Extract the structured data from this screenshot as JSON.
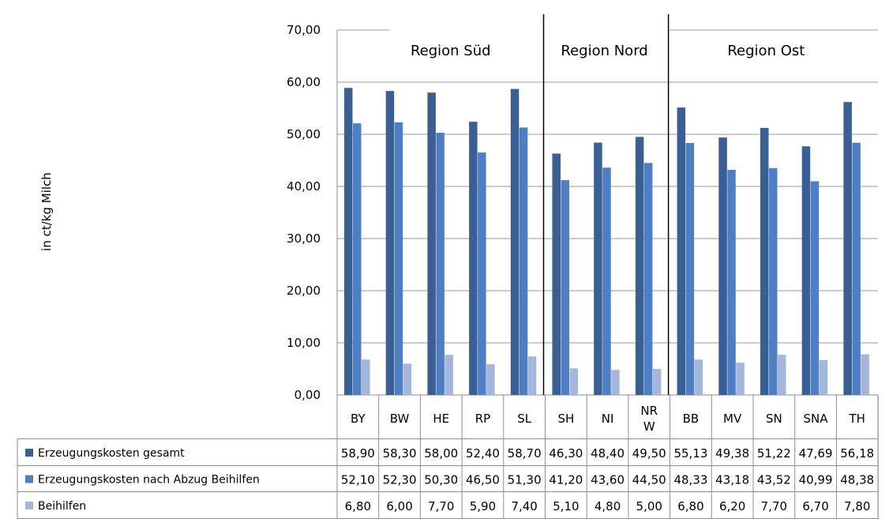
{
  "chart_data": {
    "type": "bar",
    "ylabel": "in ct/kg Milch",
    "ylim": [
      0,
      70
    ],
    "y_ticks": [
      "0,00",
      "10,00",
      "20,00",
      "30,00",
      "40,00",
      "50,00",
      "60,00",
      "70,00"
    ],
    "grid": true,
    "legend_placement": "data-table-bottom",
    "categories": [
      {
        "label": "BY",
        "lines": [
          "BY"
        ]
      },
      {
        "label": "BW",
        "lines": [
          "BW"
        ]
      },
      {
        "label": "HE",
        "lines": [
          "HE"
        ]
      },
      {
        "label": "RP",
        "lines": [
          "RP"
        ]
      },
      {
        "label": "SL",
        "lines": [
          "SL"
        ]
      },
      {
        "label": "SH",
        "lines": [
          "SH"
        ]
      },
      {
        "label": "NI",
        "lines": [
          "NI"
        ]
      },
      {
        "label": "NRW",
        "lines": [
          "NR",
          "W"
        ]
      },
      {
        "label": "BB",
        "lines": [
          "BB"
        ]
      },
      {
        "label": "MV",
        "lines": [
          "MV"
        ]
      },
      {
        "label": "SN",
        "lines": [
          "SN"
        ]
      },
      {
        "label": "SNA",
        "lines": [
          "SNA"
        ]
      },
      {
        "label": "TH",
        "lines": [
          "TH"
        ]
      }
    ],
    "regions": [
      {
        "name": "Region Süd",
        "start": 0,
        "end": 4
      },
      {
        "name": "Region Nord",
        "start": 5,
        "end": 7
      },
      {
        "name": "Region Ost",
        "start": 8,
        "end": 12
      }
    ],
    "series": [
      {
        "name": "Erzeugungskosten gesamt",
        "color": "#3A5F94",
        "values": [
          58.9,
          58.3,
          58.0,
          52.4,
          58.7,
          46.3,
          48.4,
          49.5,
          55.13,
          49.38,
          51.22,
          47.69,
          56.18
        ],
        "labels": [
          "58,90",
          "58,30",
          "58,00",
          "52,40",
          "58,70",
          "46,30",
          "48,40",
          "49,50",
          "55,13",
          "49,38",
          "51,22",
          "47,69",
          "56,18"
        ]
      },
      {
        "name": "Erzeugungskosten nach Abzug Beihilfen",
        "color": "#4E7FC2",
        "values": [
          52.1,
          52.3,
          50.3,
          46.5,
          51.3,
          41.2,
          43.6,
          44.5,
          48.33,
          43.18,
          43.52,
          40.99,
          48.38
        ],
        "labels": [
          "52,10",
          "52,30",
          "50,30",
          "46,50",
          "51,30",
          "41,20",
          "43,60",
          "44,50",
          "48,33",
          "43,18",
          "43,52",
          "40,99",
          "48,38"
        ]
      },
      {
        "name": "Beihilfen",
        "color": "#A4B6DB",
        "values": [
          6.8,
          6.0,
          7.7,
          5.9,
          7.4,
          5.1,
          4.8,
          5.0,
          6.8,
          6.2,
          7.7,
          6.7,
          7.8
        ],
        "labels": [
          "6,80",
          "6,00",
          "7,70",
          "5,90",
          "7,40",
          "5,10",
          "4,80",
          "5,00",
          "6,80",
          "6,20",
          "7,70",
          "6,70",
          "7,80"
        ]
      }
    ]
  }
}
